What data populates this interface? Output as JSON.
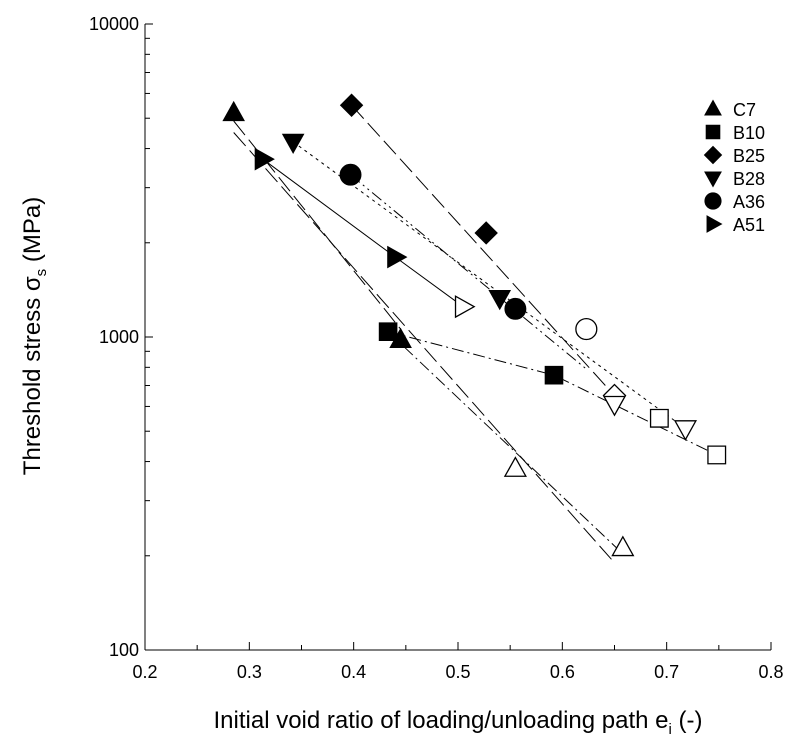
{
  "chart_data": {
    "type": "scatter",
    "xlabel_main": "Initial void ratio of loading/unloading path e",
    "xlabel_sub": "i",
    "xlabel_tail": " (-)",
    "ylabel_main": "Threshold stress σ",
    "ylabel_sub": "s",
    "ylabel_tail": " (MPa)",
    "xlim": [
      0.2,
      0.8
    ],
    "ylim": [
      100,
      10000
    ],
    "yscale": "log",
    "x_ticks": [
      0.2,
      0.3,
      0.4,
      0.5,
      0.6,
      0.7,
      0.8
    ],
    "x_tick_labels": [
      "0.2",
      "0.3",
      "0.4",
      "0.5",
      "0.6",
      "0.7",
      "0.8"
    ],
    "y_ticks": [
      100,
      1000,
      10000
    ],
    "y_tick_labels": [
      "100",
      "1000",
      "10000"
    ],
    "legend_position": "top-right",
    "series": [
      {
        "name": "C7",
        "marker": "triangle-up",
        "dash": "long-dash",
        "filled": [
          [
            0.285,
            5200
          ],
          [
            0.445,
            980
          ]
        ],
        "open": [
          [
            0.555,
            380
          ],
          [
            0.658,
            212
          ]
        ],
        "lines": [
          [
            [
              0.285,
              4500
            ],
            [
              0.65,
              190
            ]
          ],
          [
            [
              0.285,
              4900
            ],
            [
              0.445,
              1060
            ]
          ]
        ]
      },
      {
        "name": "B10",
        "marker": "square",
        "dash": "dash-dot",
        "filled": [
          [
            0.433,
            1040
          ],
          [
            0.592,
            755
          ]
        ],
        "open": [
          [
            0.693,
            550
          ],
          [
            0.748,
            420
          ]
        ],
        "lines": [
          [
            [
              0.433,
              1040
            ],
            [
              0.66,
              200
            ]
          ],
          [
            [
              0.433,
              1040
            ],
            [
              0.592,
              755
            ],
            [
              0.748,
              420
            ]
          ]
        ]
      },
      {
        "name": "B25",
        "marker": "diamond",
        "dash": "long-dash",
        "filled": [
          [
            0.398,
            5500
          ],
          [
            0.527,
            2150
          ]
        ],
        "open": [
          [
            0.65,
            650
          ]
        ],
        "lines": [
          [
            [
              0.398,
              5500
            ],
            [
              0.65,
              650
            ]
          ]
        ]
      },
      {
        "name": "B28",
        "marker": "triangle-down",
        "dash": "dotted",
        "filled": [
          [
            0.342,
            4200
          ],
          [
            0.54,
            1330
          ]
        ],
        "open": [
          [
            0.65,
            610
          ],
          [
            0.718,
            510
          ]
        ],
        "lines": [
          [
            [
              0.342,
              4200
            ],
            [
              0.718,
              510
            ]
          ]
        ]
      },
      {
        "name": "A36",
        "marker": "circle",
        "dash": "dash-dot-dot",
        "filled": [
          [
            0.397,
            3300
          ],
          [
            0.555,
            1230
          ]
        ],
        "open": [
          [
            0.623,
            1060
          ]
        ],
        "lines": [
          [
            [
              0.397,
              3300
            ],
            [
              0.623,
              790
            ]
          ]
        ]
      },
      {
        "name": "A51",
        "marker": "triangle-right",
        "dash": "solid",
        "filled": [
          [
            0.313,
            3700
          ],
          [
            0.44,
            1800
          ]
        ],
        "open": [
          [
            0.505,
            1250
          ]
        ],
        "lines": [
          [
            [
              0.313,
              3700
            ],
            [
              0.44,
              1800
            ],
            [
              0.505,
              1250
            ]
          ]
        ]
      }
    ]
  }
}
